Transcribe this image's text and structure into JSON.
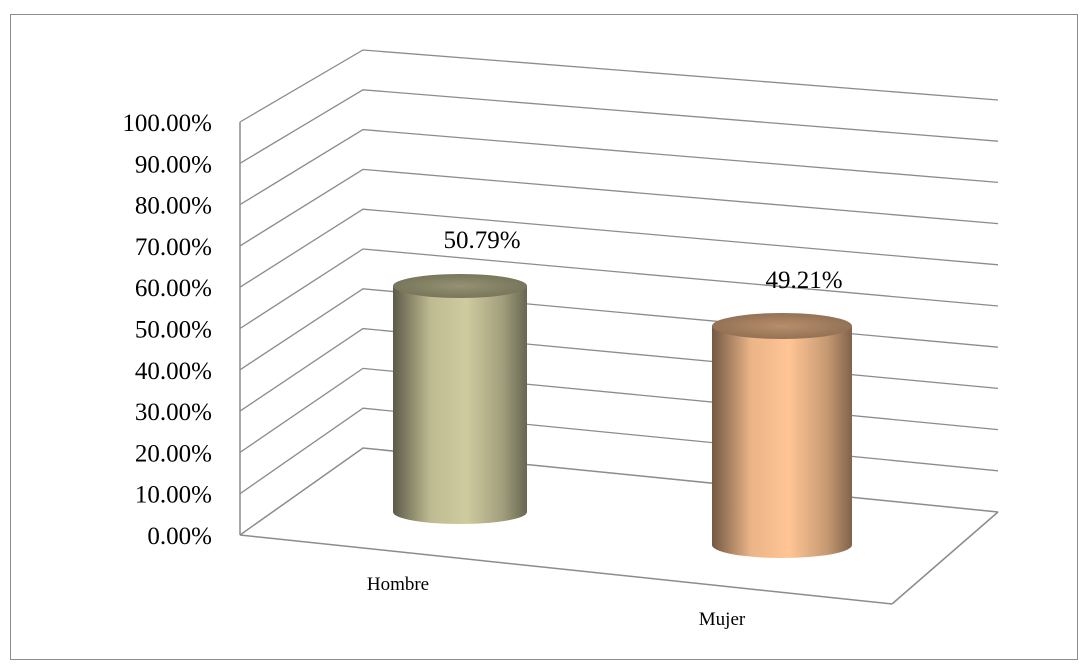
{
  "chart_data": {
    "type": "bar",
    "style": "3d-cylinder",
    "categories": [
      "Hombre",
      "Mujer"
    ],
    "values": [
      50.79,
      49.21
    ],
    "data_labels": [
      "50.79%",
      "49.21%"
    ],
    "colors": [
      "#cfcb9f",
      "#ffc594"
    ],
    "ylim": [
      0,
      100
    ],
    "yticks": [
      "0.00%",
      "10.00%",
      "20.00%",
      "30.00%",
      "40.00%",
      "50.00%",
      "60.00%",
      "70.00%",
      "80.00%",
      "90.00%",
      "100.00%"
    ],
    "grid": true,
    "legend": false,
    "title": "",
    "xlabel": "",
    "ylabel": ""
  }
}
